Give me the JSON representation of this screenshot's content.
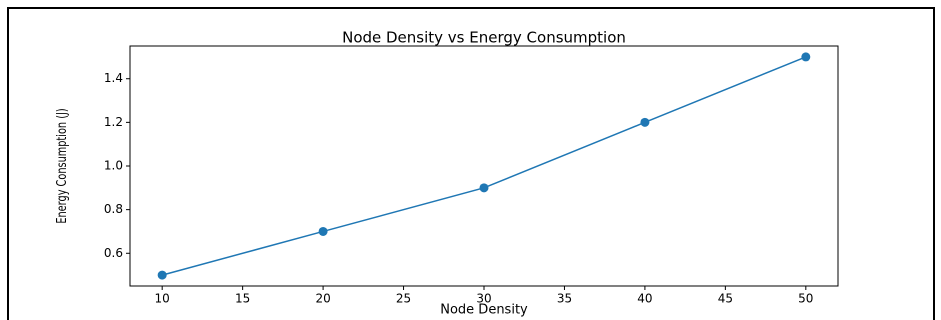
{
  "chart_data": {
    "type": "line",
    "title": "Node Density vs Energy Consumption",
    "xlabel": "Node Density",
    "ylabel": "Energy Consumption (J)",
    "x": [
      10,
      20,
      30,
      40,
      50
    ],
    "series": [
      {
        "name": "Energy Consumption",
        "color": "#1f77b4",
        "values": [
          0.5,
          0.7,
          0.9,
          1.2,
          1.5
        ]
      }
    ],
    "xlim": [
      8,
      52
    ],
    "xticks": [
      10,
      15,
      20,
      25,
      30,
      35,
      40,
      45,
      50
    ],
    "ylim": [
      0.45,
      1.55
    ],
    "yticks": [
      0.6,
      0.8,
      {
        "value": 1,
        "label": "1.0"
      },
      1.2,
      1.4
    ],
    "grid": false,
    "markers": true
  }
}
